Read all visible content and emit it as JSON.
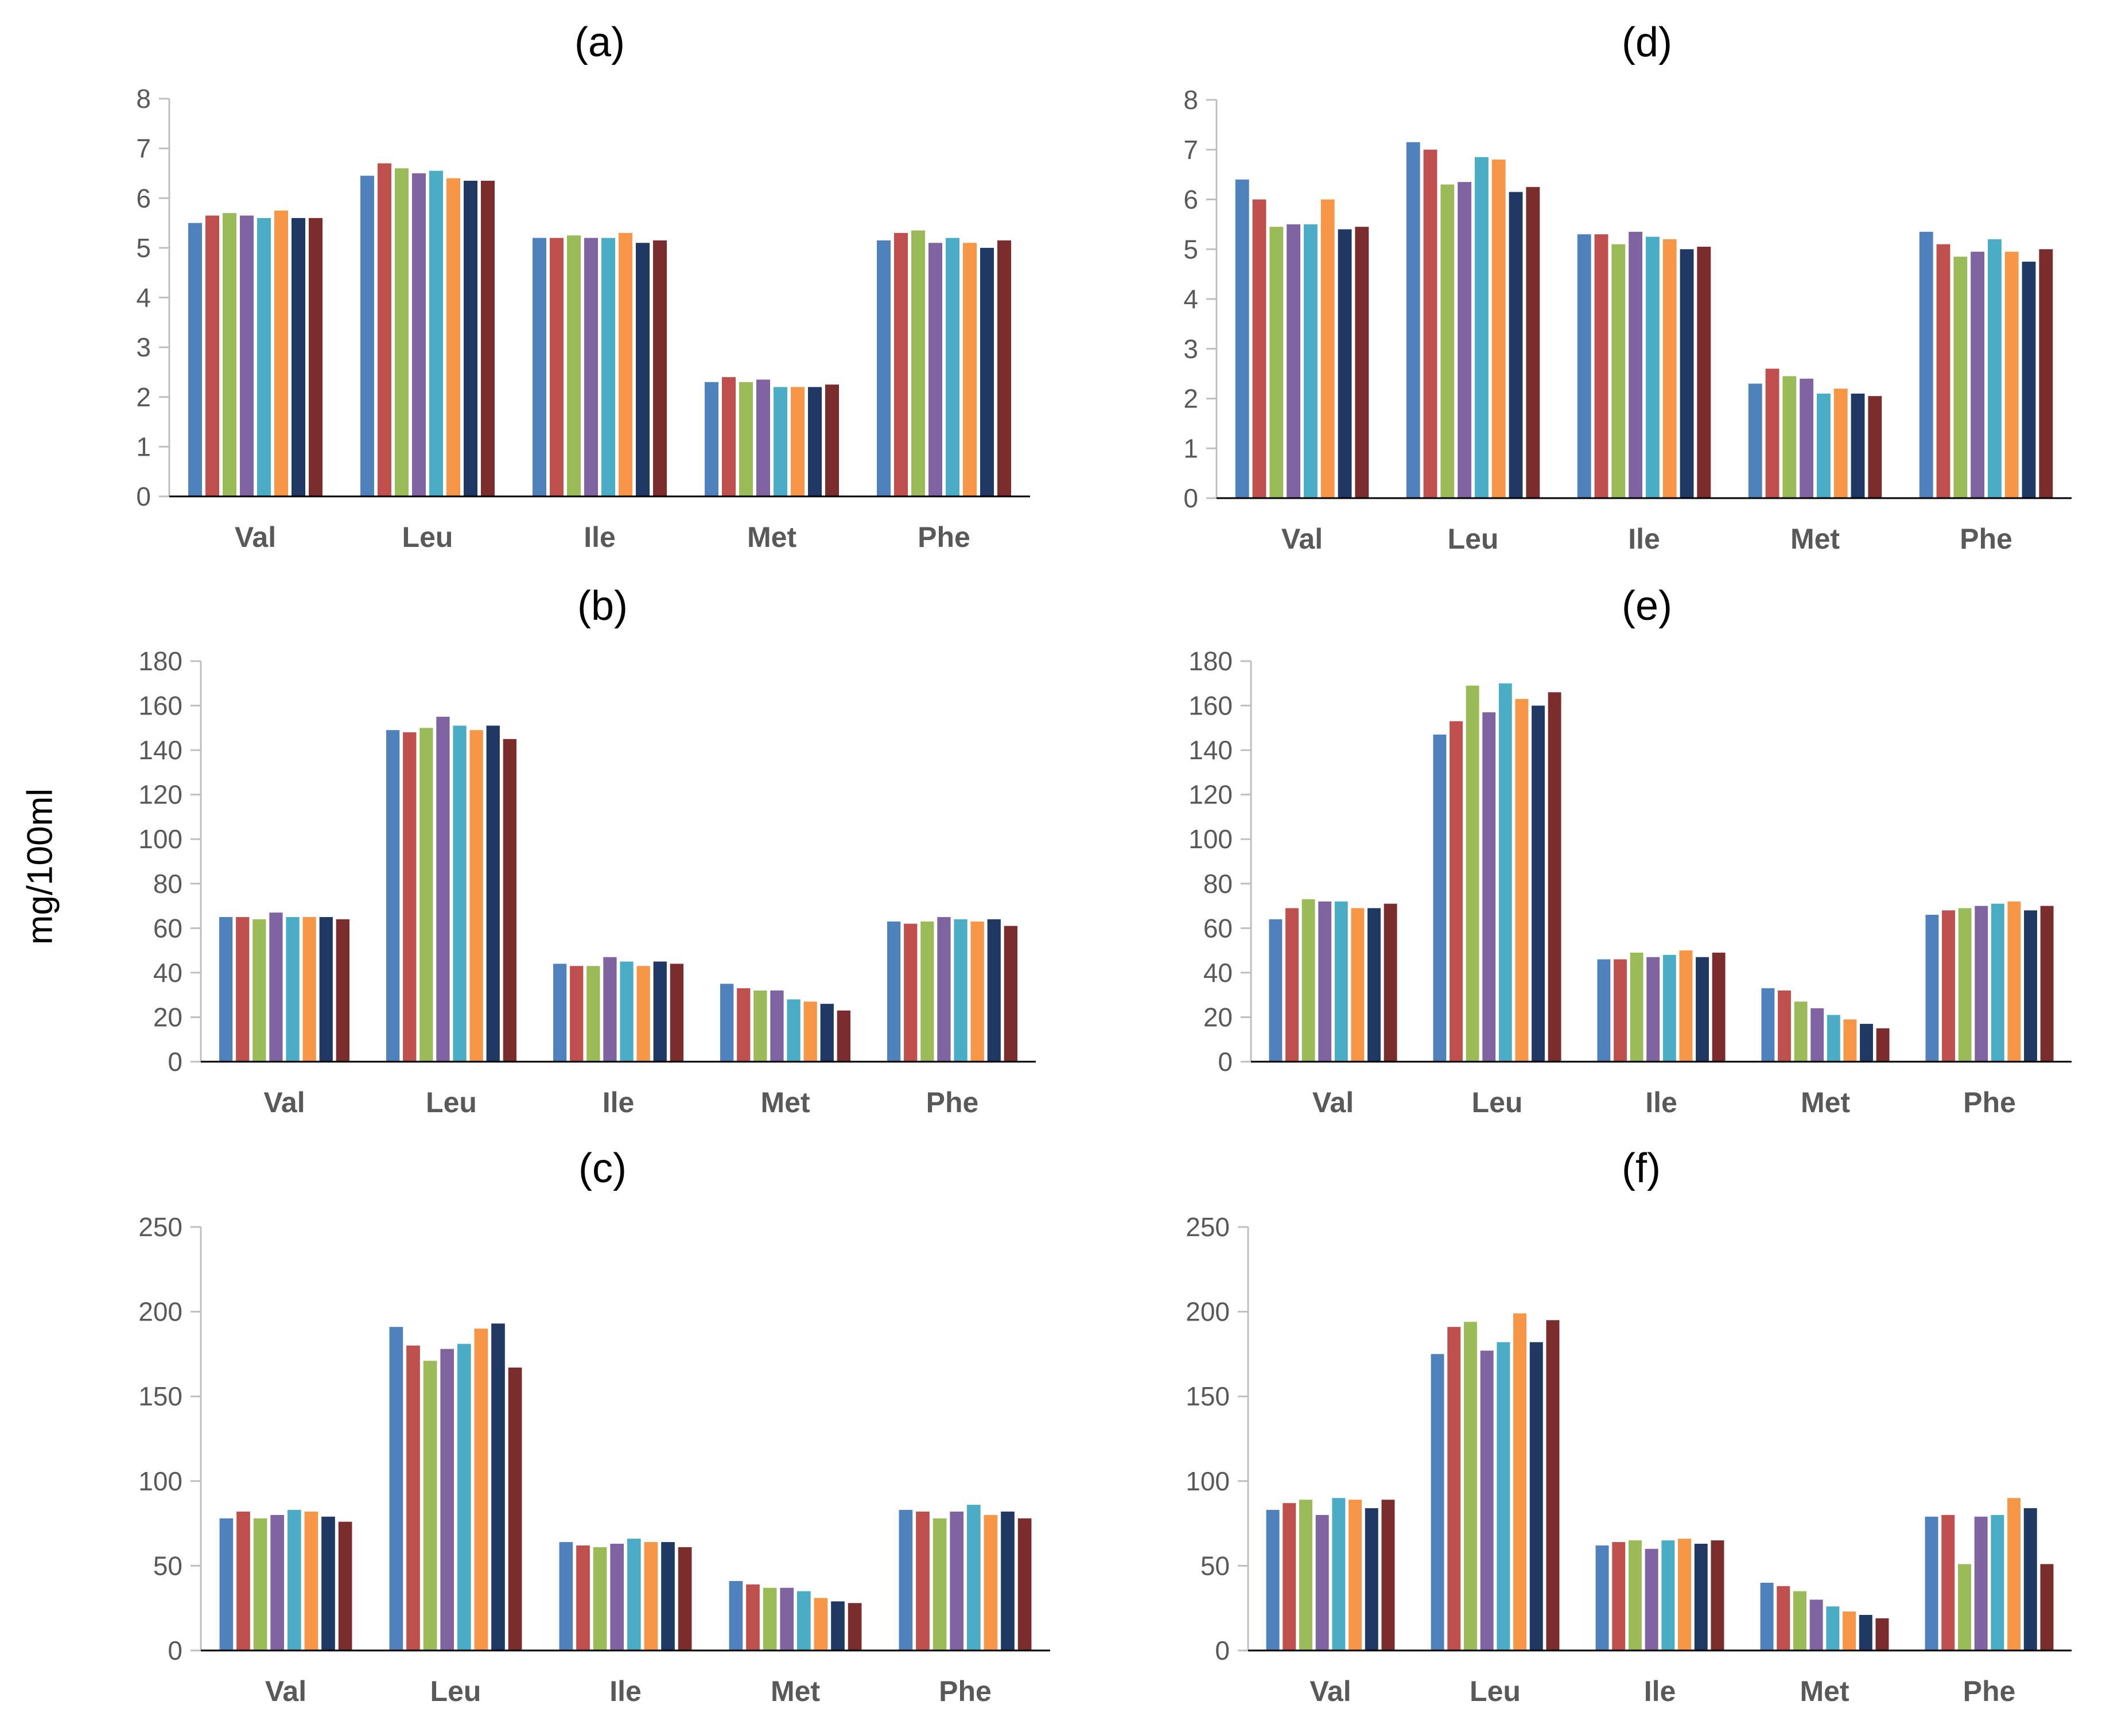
{
  "figure": {
    "ylabel": "mg/100ml"
  },
  "palette": [
    "#4f81bd",
    "#c0504d",
    "#9bbb59",
    "#8064a2",
    "#4bacc6",
    "#f79646",
    "#1f3864",
    "#7b2c2c"
  ],
  "chart_data": [
    {
      "type": "bar",
      "title": "(a)",
      "xlabel": "",
      "ylabel": "mg/100ml",
      "categories": [
        "Val",
        "Leu",
        "Ile",
        "Met",
        "Phe"
      ],
      "ylim": [
        0,
        8
      ],
      "yticks": [
        "0",
        "1",
        "2",
        "3",
        "4",
        "5",
        "6",
        "7",
        "8"
      ],
      "values": [
        [
          5.5,
          5.65,
          5.7,
          5.65,
          5.6,
          5.75,
          5.6,
          5.6
        ],
        [
          6.45,
          6.7,
          6.6,
          6.5,
          6.55,
          6.4,
          6.35,
          6.35
        ],
        [
          5.2,
          5.2,
          5.25,
          5.2,
          5.2,
          5.3,
          5.1,
          5.15
        ],
        [
          2.3,
          2.4,
          2.3,
          2.35,
          2.2,
          2.2,
          2.2,
          2.25
        ],
        [
          5.15,
          5.3,
          5.35,
          5.1,
          5.2,
          5.1,
          5.0,
          5.15
        ]
      ]
    },
    {
      "type": "bar",
      "title": "(b)",
      "xlabel": "",
      "ylabel": "mg/100ml",
      "categories": [
        "Val",
        "Leu",
        "Ile",
        "Met",
        "Phe"
      ],
      "ylim": [
        0,
        180
      ],
      "yticks": [
        "0",
        "20",
        "40",
        "60",
        "80",
        "100",
        "120",
        "140",
        "160",
        "180"
      ],
      "values": [
        [
          65,
          65,
          64,
          67,
          65,
          65,
          65,
          64
        ],
        [
          149,
          148,
          150,
          155,
          151,
          149,
          151,
          145
        ],
        [
          44,
          43,
          43,
          47,
          45,
          43,
          45,
          44
        ],
        [
          35,
          33,
          32,
          32,
          28,
          27,
          26,
          23
        ],
        [
          63,
          62,
          63,
          65,
          64,
          63,
          64,
          61
        ]
      ]
    },
    {
      "type": "bar",
      "title": "(c)",
      "xlabel": "",
      "ylabel": "mg/100ml",
      "categories": [
        "Val",
        "Leu",
        "Ile",
        "Met",
        "Phe"
      ],
      "ylim": [
        0,
        250
      ],
      "yticks": [
        "0",
        "50",
        "100",
        "150",
        "200",
        "250"
      ],
      "values": [
        [
          78,
          82,
          78,
          80,
          83,
          82,
          79,
          76
        ],
        [
          191,
          180,
          171,
          178,
          181,
          190,
          193,
          167
        ],
        [
          64,
          62,
          61,
          63,
          66,
          64,
          64,
          61
        ],
        [
          41,
          39,
          37,
          37,
          35,
          31,
          29,
          28
        ],
        [
          83,
          82,
          78,
          82,
          86,
          80,
          82,
          78
        ]
      ]
    },
    {
      "type": "bar",
      "title": "(d)",
      "xlabel": "",
      "ylabel": "mg/100ml",
      "categories": [
        "Val",
        "Leu",
        "Ile",
        "Met",
        "Phe"
      ],
      "ylim": [
        0,
        8
      ],
      "yticks": [
        "0",
        "1",
        "2",
        "3",
        "4",
        "5",
        "6",
        "7",
        "8"
      ],
      "values": [
        [
          6.4,
          6.0,
          5.45,
          5.5,
          5.5,
          6.0,
          5.4,
          5.45
        ],
        [
          7.15,
          7.0,
          6.3,
          6.35,
          6.85,
          6.8,
          6.15,
          6.25
        ],
        [
          5.3,
          5.3,
          5.1,
          5.35,
          5.25,
          5.2,
          5.0,
          5.05
        ],
        [
          2.3,
          2.6,
          2.45,
          2.4,
          2.1,
          2.2,
          2.1,
          2.05
        ],
        [
          5.35,
          5.1,
          4.85,
          4.95,
          5.2,
          4.95,
          4.75,
          5.0
        ]
      ]
    },
    {
      "type": "bar",
      "title": "(e)",
      "xlabel": "",
      "ylabel": "mg/100ml",
      "categories": [
        "Val",
        "Leu",
        "Ile",
        "Met",
        "Phe"
      ],
      "ylim": [
        0,
        180
      ],
      "yticks": [
        "0",
        "20",
        "40",
        "60",
        "80",
        "100",
        "120",
        "140",
        "160",
        "180"
      ],
      "values": [
        [
          64,
          69,
          73,
          72,
          72,
          69,
          69,
          71
        ],
        [
          147,
          153,
          169,
          157,
          170,
          163,
          160,
          166
        ],
        [
          46,
          46,
          49,
          47,
          48,
          50,
          47,
          49
        ],
        [
          33,
          32,
          27,
          24,
          21,
          19,
          17,
          15
        ],
        [
          66,
          68,
          69,
          70,
          71,
          72,
          68,
          70
        ]
      ]
    },
    {
      "type": "bar",
      "title": "(f)",
      "xlabel": "",
      "ylabel": "mg/100ml",
      "categories": [
        "Val",
        "Leu",
        "Ile",
        "Met",
        "Phe"
      ],
      "ylim": [
        0,
        250
      ],
      "yticks": [
        "0",
        "50",
        "100",
        "150",
        "200",
        "250"
      ],
      "values": [
        [
          83,
          87,
          89,
          80,
          90,
          89,
          84,
          89
        ],
        [
          175,
          191,
          194,
          177,
          182,
          199,
          182,
          195
        ],
        [
          62,
          64,
          65,
          60,
          65,
          66,
          63,
          65
        ],
        [
          40,
          38,
          35,
          30,
          26,
          23,
          21,
          19
        ],
        [
          79,
          80,
          51,
          79,
          80,
          90,
          84,
          51
        ]
      ]
    }
  ]
}
